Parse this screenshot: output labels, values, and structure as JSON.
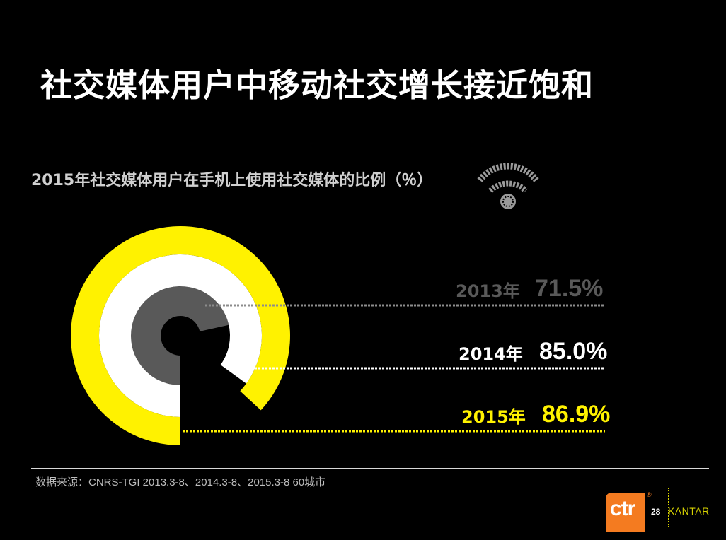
{
  "title": "社交媒体用户中移动社交增长接近饱和",
  "subtitle": "2015年社交媒体用户在手机上使用社交媒体的比例（％）",
  "chart_data": {
    "type": "radial-bar",
    "unit": "%",
    "series": [
      {
        "year": "2013年",
        "value_label": "71.5%",
        "value": 71.5,
        "color": "#595959",
        "label_color": "#595959",
        "line_color": "#8c8c8c"
      },
      {
        "year": "2014年",
        "value_label": "85.0%",
        "value": 85.0,
        "color": "#ffffff",
        "label_color": "#ffffff",
        "line_color": "#ffffff"
      },
      {
        "year": "2015年",
        "value_label": "86.9%",
        "value": 86.9,
        "color": "#fff200",
        "label_color": "#fff200",
        "line_color": "#fff200"
      }
    ]
  },
  "wifi_icon": "wifi-icon",
  "source": "数据来源：CNRS-TGI 2013.3-8、2014.3-8、2015.3-8  60城市",
  "footer": {
    "logo_text": "ctr",
    "registered": "®",
    "page_number": "28",
    "brand": "KANTAR"
  }
}
